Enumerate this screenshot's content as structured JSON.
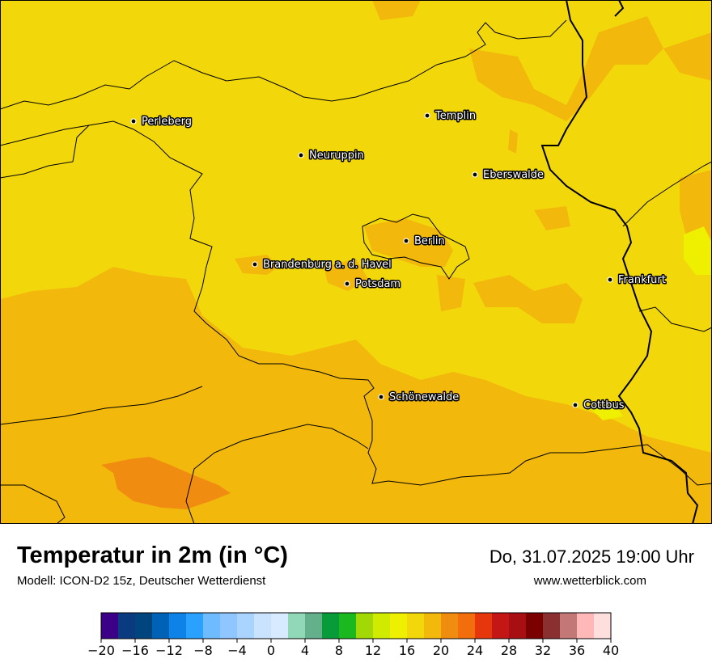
{
  "map": {
    "title": "Temperatur in 2m (in °C)",
    "model": "Modell: ICON-D2 15z, Deutscher Wetterdienst",
    "datetime": "Do, 31.07.2025 19:00 Uhr",
    "website": "www.wetterblick.com",
    "cities": [
      {
        "name": "Perleberg"
      },
      {
        "name": "Templin"
      },
      {
        "name": "Neuruppin"
      },
      {
        "name": "Eberswalde"
      },
      {
        "name": "Berlin"
      },
      {
        "name": "Brandenburg a. d. Havel"
      },
      {
        "name": "Potsdam"
      },
      {
        "name": "Frankfurt"
      },
      {
        "name": "Schönewalde"
      },
      {
        "name": "Cottbus"
      }
    ]
  },
  "legend": {
    "tick_labels": [
      "−20",
      "−16",
      "−12",
      "−8",
      "−4",
      "0",
      "4",
      "8",
      "12",
      "16",
      "20",
      "24",
      "28",
      "32",
      "36",
      "40"
    ],
    "colors": [
      "#3b0087",
      "#0a3a80",
      "#00457e",
      "#0062b7",
      "#0d83e8",
      "#2aa0ff",
      "#6fbbff",
      "#8fc6ff",
      "#a9d4ff",
      "#c9e3ff",
      "#d8eaff",
      "#91d9b6",
      "#64b08c",
      "#079b3a",
      "#1cb81f",
      "#a2d805",
      "#d0ea00",
      "#eef000",
      "#f2d80b",
      "#f2b80b",
      "#f08d11",
      "#f26d0c",
      "#e6370c",
      "#c41614",
      "#a70f12",
      "#7b0000",
      "#8a3030",
      "#c47777",
      "#ffb8b8",
      "#ffdede"
    ]
  }
}
